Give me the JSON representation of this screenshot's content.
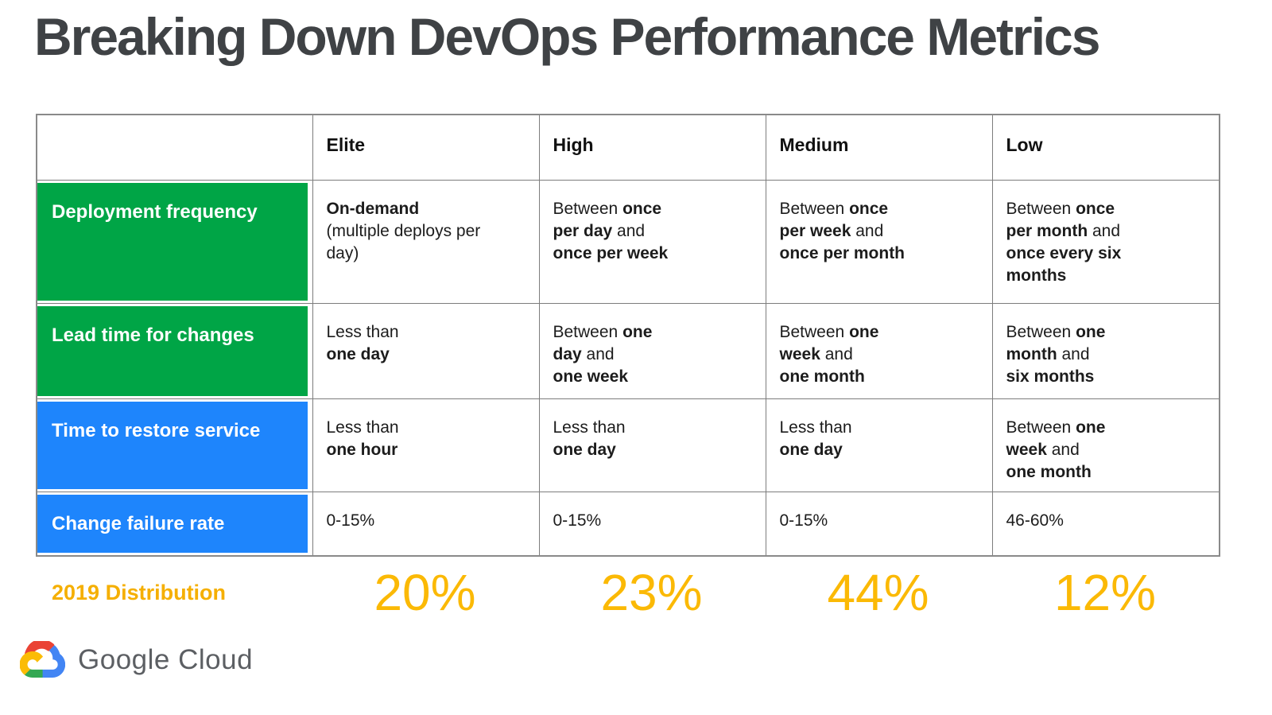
{
  "title": "Breaking Down DevOps Performance Metrics",
  "table": {
    "column_headers": [
      "Elite",
      "High",
      "Medium",
      "Low"
    ],
    "rows": [
      {
        "label": "Deployment frequency",
        "color": "green",
        "cells": [
          [
            {
              "t": "On-demand",
              "b": true
            },
            {
              "t": "\n(multiple deploys per\nday)",
              "b": false
            }
          ],
          [
            {
              "t": "Between ",
              "b": false
            },
            {
              "t": "once\nper day",
              "b": true
            },
            {
              "t": " and\n",
              "b": false
            },
            {
              "t": "once per week",
              "b": true
            }
          ],
          [
            {
              "t": "Between ",
              "b": false
            },
            {
              "t": "once\nper week",
              "b": true
            },
            {
              "t": " and\n",
              "b": false
            },
            {
              "t": "once per month",
              "b": true
            }
          ],
          [
            {
              "t": "Between ",
              "b": false
            },
            {
              "t": "once\nper month",
              "b": true
            },
            {
              "t": " and\n",
              "b": false
            },
            {
              "t": "once every six\nmonths",
              "b": true
            }
          ]
        ]
      },
      {
        "label": "Lead time for changes",
        "color": "green",
        "cells": [
          [
            {
              "t": "Less than\n",
              "b": false
            },
            {
              "t": "one day",
              "b": true
            }
          ],
          [
            {
              "t": "Between ",
              "b": false
            },
            {
              "t": "one\nday",
              "b": true
            },
            {
              "t": " and\n",
              "b": false
            },
            {
              "t": "one week",
              "b": true
            }
          ],
          [
            {
              "t": "Between ",
              "b": false
            },
            {
              "t": "one\nweek",
              "b": true
            },
            {
              "t": " and\n",
              "b": false
            },
            {
              "t": "one month",
              "b": true
            }
          ],
          [
            {
              "t": "Between ",
              "b": false
            },
            {
              "t": "one\nmonth",
              "b": true
            },
            {
              "t": " and\n",
              "b": false
            },
            {
              "t": "six months",
              "b": true
            }
          ]
        ]
      },
      {
        "label": "Time to restore service",
        "color": "blue",
        "cells": [
          [
            {
              "t": "Less than\n",
              "b": false
            },
            {
              "t": "one hour",
              "b": true
            }
          ],
          [
            {
              "t": "Less than\n",
              "b": false
            },
            {
              "t": "one day",
              "b": true
            }
          ],
          [
            {
              "t": "Less than\n",
              "b": false
            },
            {
              "t": "one day",
              "b": true
            }
          ],
          [
            {
              "t": "Between ",
              "b": false
            },
            {
              "t": "one\nweek",
              "b": true
            },
            {
              "t": " and\n",
              "b": false
            },
            {
              "t": "one month",
              "b": true
            }
          ]
        ]
      },
      {
        "label": "Change failure rate",
        "color": "blue",
        "cells": [
          [
            {
              "t": "0-15%",
              "b": false
            }
          ],
          [
            {
              "t": "0-15%",
              "b": false
            }
          ],
          [
            {
              "t": "0-15%",
              "b": false
            }
          ],
          [
            {
              "t": "46-60%",
              "b": false
            }
          ]
        ]
      }
    ]
  },
  "distribution": {
    "label": "2019 Distribution",
    "values": [
      "20%",
      "23%",
      "44%",
      "12%"
    ]
  },
  "footer": {
    "brand": "Google Cloud"
  },
  "colors": {
    "green": "#00A546",
    "blue": "#1E85FC",
    "gold_label": "#F5AF00",
    "gold_value": "#FBB905",
    "title": "#3F4245",
    "border": "#7D7D7D",
    "cell_text": "#1C1C1C",
    "brand_text": "#5C5F63",
    "logo_red": "#EA4335",
    "logo_blue": "#4285F4",
    "logo_green": "#34A853",
    "logo_yellow": "#FBBC05"
  },
  "chart_data": {
    "type": "table",
    "title": "Breaking Down DevOps Performance Metrics",
    "columns": [
      "Elite",
      "High",
      "Medium",
      "Low"
    ],
    "rows": [
      {
        "metric": "Deployment frequency",
        "values": [
          "On-demand (multiple deploys per day)",
          "Between once per day and once per week",
          "Between once per week and once per month",
          "Between once per month and once every six months"
        ]
      },
      {
        "metric": "Lead time for changes",
        "values": [
          "Less than one day",
          "Between one day and one week",
          "Between one week and one month",
          "Between one month and six months"
        ]
      },
      {
        "metric": "Time to restore service",
        "values": [
          "Less than one hour",
          "Less than one day",
          "Less than one day",
          "Between one week and one month"
        ]
      },
      {
        "metric": "Change failure rate",
        "values": [
          "0-15%",
          "0-15%",
          "0-15%",
          "46-60%"
        ]
      }
    ],
    "distribution_2019": {
      "label": "2019 Distribution",
      "categories": [
        "Elite",
        "High",
        "Medium",
        "Low"
      ],
      "values_pct": [
        20,
        23,
        44,
        12
      ]
    }
  }
}
